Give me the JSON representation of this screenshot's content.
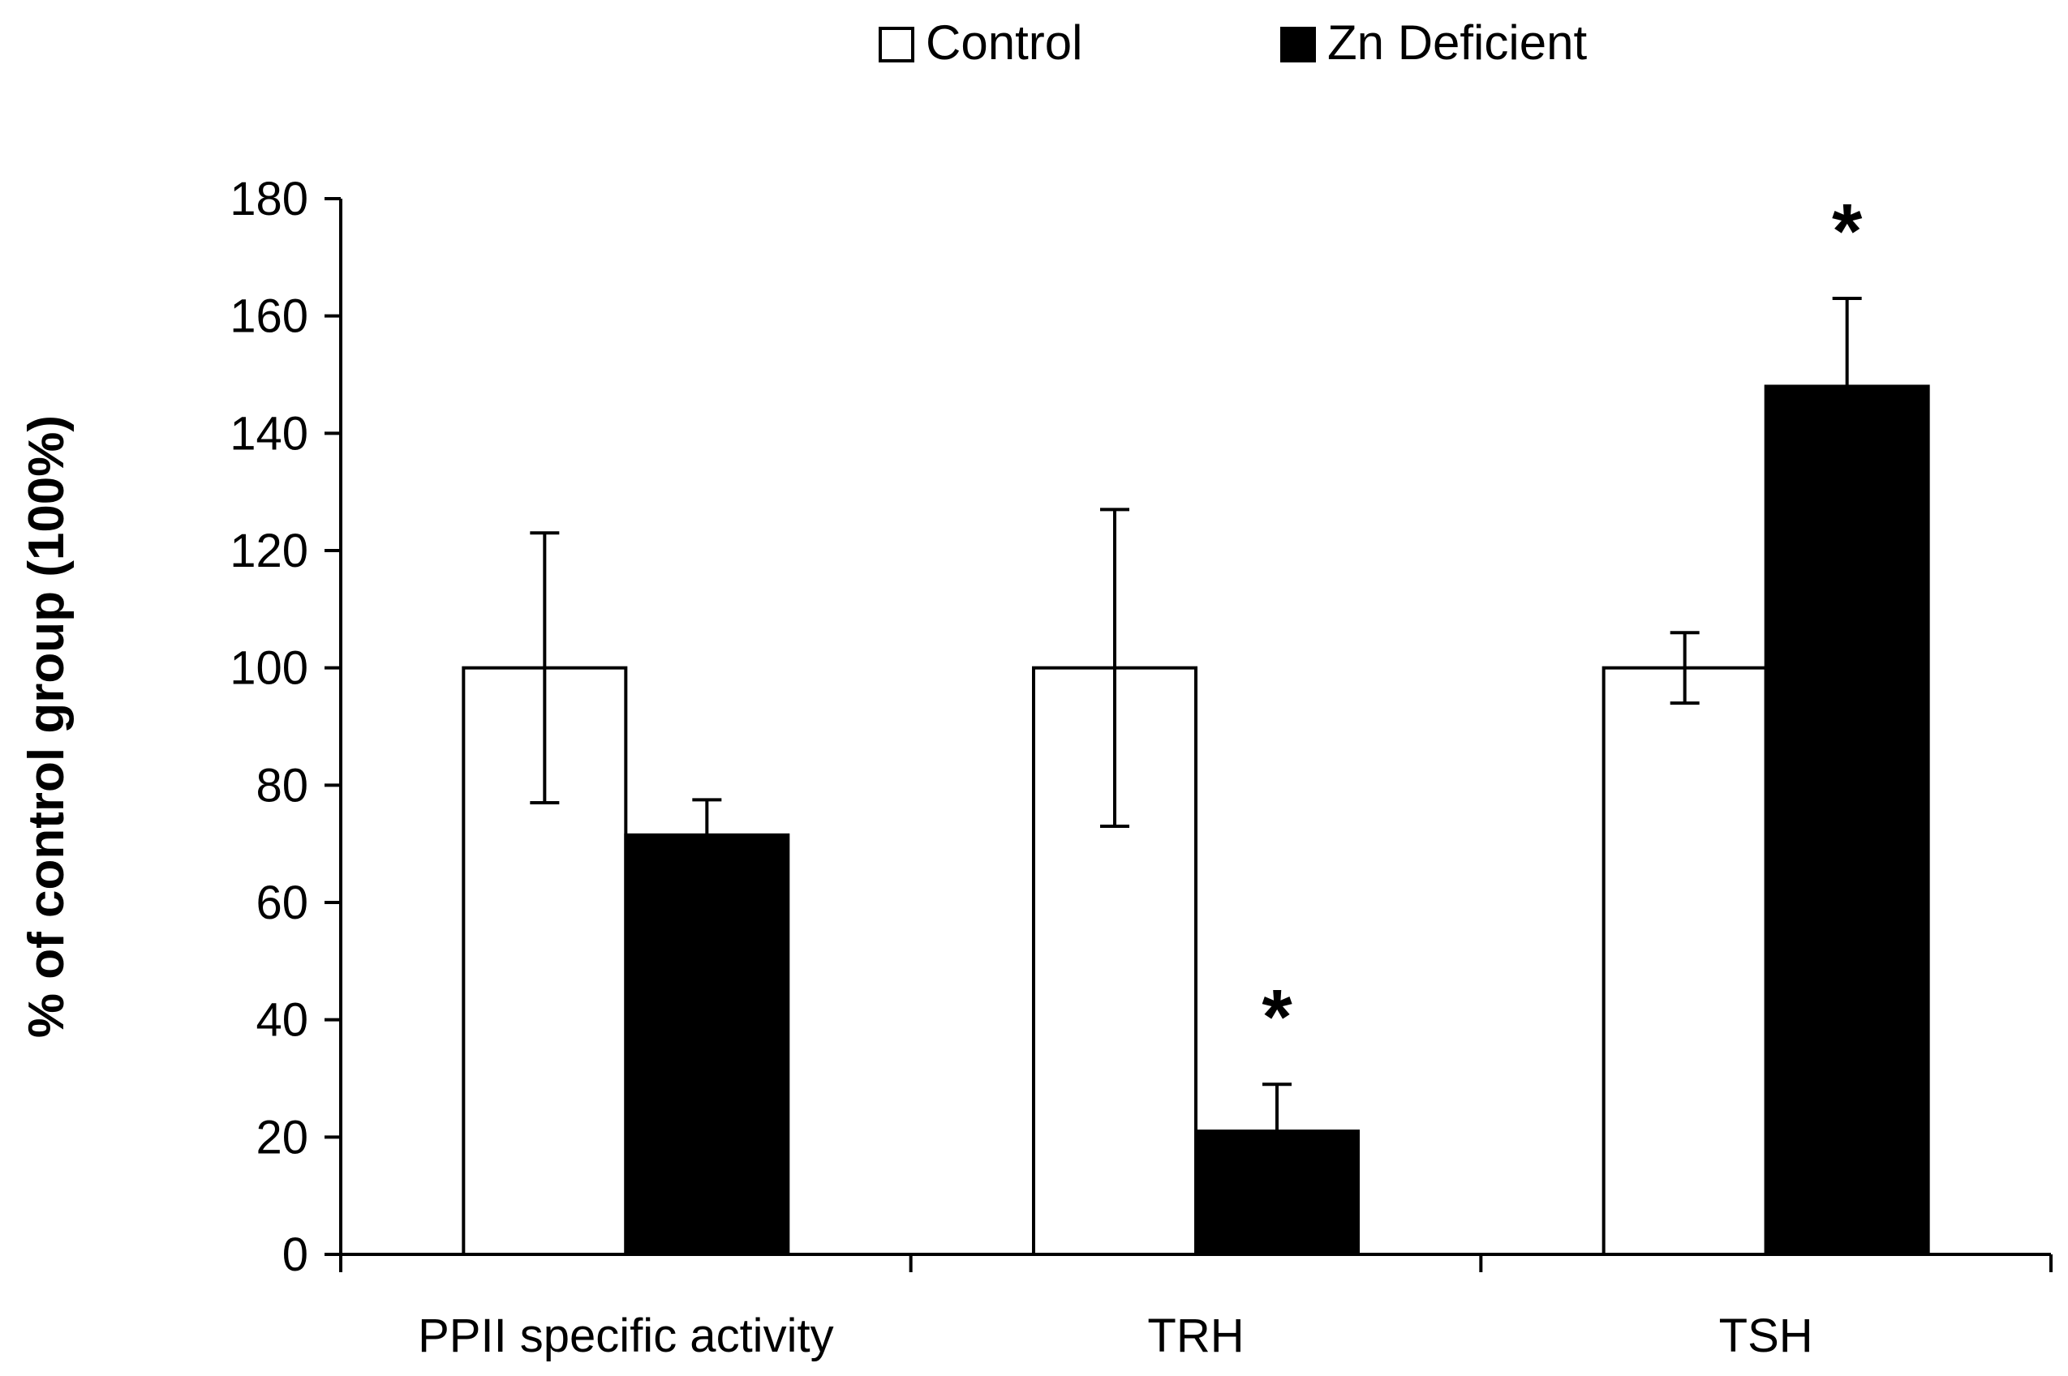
{
  "chart_data": {
    "type": "bar",
    "title": "",
    "xlabel": "",
    "ylabel": "% of control group (100%)",
    "ylim": [
      0,
      180
    ],
    "yticks": [
      0,
      20,
      40,
      60,
      80,
      100,
      120,
      140,
      160,
      180
    ],
    "grid": false,
    "legend_position": "top-center",
    "categories": [
      "PPII specific activity",
      "TRH",
      "TSH"
    ],
    "series": [
      {
        "name": "Control",
        "color": "#ffffff",
        "edge_color": "#000000",
        "values": [
          100,
          100,
          100
        ],
        "errors": [
          23,
          27,
          6
        ]
      },
      {
        "name": "Zn Deficient",
        "color": "#000000",
        "edge_color": "#000000",
        "values": [
          71.5,
          21,
          148
        ],
        "errors": [
          6,
          8,
          15
        ]
      }
    ],
    "annotations": [
      {
        "text": "*",
        "category": "TRH",
        "series": "Zn Deficient"
      },
      {
        "text": "*",
        "category": "TSH",
        "series": "Zn Deficient"
      }
    ]
  }
}
